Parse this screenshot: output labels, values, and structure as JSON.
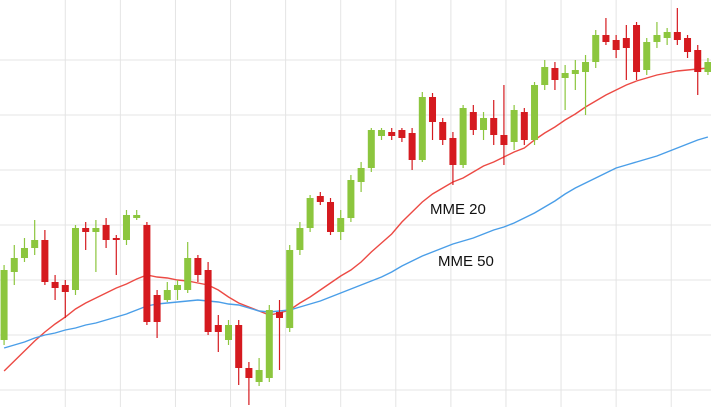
{
  "chart_data": {
    "type": "candlestick",
    "xlim": [
      -0.4,
      69.3
    ],
    "xticks": [
      6,
      11.4,
      16.8,
      22.2,
      27.6,
      33,
      38.4,
      43.8,
      49.2,
      54.6,
      60,
      65.4
    ],
    "ylim": [
      0,
      407
    ],
    "yticks": [
      17,
      72,
      127,
      182,
      237,
      292,
      347
    ],
    "grid": true,
    "up_color": "#8cc63e",
    "down_color": "#d51a1f",
    "open": [
      67,
      135,
      149,
      159,
      167,
      125,
      122,
      117,
      179,
      175,
      182,
      169,
      167,
      189,
      182,
      112,
      107,
      117,
      117,
      149,
      137,
      82,
      67,
      82,
      39,
      25,
      29,
      95,
      79,
      157,
      179,
      211,
      205,
      175,
      189,
      225,
      239,
      271,
      275,
      277,
      274,
      247,
      310,
      285,
      269,
      242,
      295,
      277,
      289,
      272,
      265,
      295,
      267,
      322,
      339,
      329,
      333,
      335,
      345,
      372,
      367,
      369,
      382,
      337,
      365,
      369,
      375,
      369,
      357,
      335
    ],
    "high": [
      142,
      162,
      169,
      187,
      177,
      132,
      127,
      182,
      185,
      187,
      189,
      172,
      197,
      197,
      185,
      117,
      125,
      127,
      165,
      152,
      145,
      92,
      87,
      87,
      45,
      49,
      102,
      107,
      162,
      185,
      212,
      215,
      209,
      197,
      232,
      245,
      279,
      279,
      279,
      279,
      279,
      315,
      314,
      289,
      275,
      302,
      302,
      295,
      307,
      322,
      302,
      299,
      325,
      347,
      345,
      342,
      347,
      352,
      377,
      389,
      372,
      382,
      385,
      369,
      385,
      379,
      399,
      372,
      362,
      349
    ],
    "low": [
      62,
      122,
      145,
      152,
      122,
      107,
      89,
      112,
      157,
      135,
      159,
      132,
      162,
      187,
      82,
      69,
      105,
      107,
      114,
      125,
      72,
      55,
      62,
      22,
      2,
      21,
      25,
      37,
      75,
      152,
      175,
      202,
      172,
      167,
      185,
      215,
      235,
      267,
      267,
      265,
      237,
      245,
      267,
      262,
      222,
      239,
      272,
      267,
      262,
      242,
      257,
      262,
      262,
      317,
      317,
      297,
      317,
      292,
      339,
      362,
      349,
      327,
      327,
      332,
      359,
      362,
      362,
      349,
      312,
      332
    ],
    "close": [
      137,
      149,
      159,
      167,
      125,
      119,
      115,
      179,
      175,
      179,
      167,
      167,
      192,
      192,
      85,
      85,
      117,
      122,
      149,
      132,
      75,
      75,
      82,
      39,
      29,
      37,
      97,
      89,
      157,
      179,
      209,
      205,
      175,
      189,
      227,
      239,
      277,
      277,
      271,
      269,
      247,
      310,
      285,
      267,
      242,
      299,
      277,
      289,
      272,
      262,
      297,
      267,
      322,
      340,
      327,
      334,
      337,
      345,
      372,
      365,
      357,
      359,
      335,
      365,
      372,
      375,
      367,
      355,
      335,
      345
    ],
    "series": [
      {
        "name": "MME 20",
        "color": "#ec4a44",
        "values": [
          36,
          46,
          56,
          66,
          75,
          83,
          90,
          98,
          104,
          109,
          114,
          119,
          123,
          128,
          132,
          130,
          129,
          127,
          126,
          124,
          122,
          117,
          110,
          104,
          100,
          96,
          92,
          94,
          97,
          104,
          110,
          117,
          124,
          131,
          137,
          145,
          155,
          164,
          173,
          185,
          195,
          205,
          213,
          219,
          225,
          229,
          235,
          241,
          245,
          250,
          255,
          259,
          267,
          274,
          280,
          287,
          293,
          300,
          306,
          312,
          317,
          322,
          326,
          329,
          332,
          334,
          336,
          337,
          338,
          339
        ]
      },
      {
        "name": "MME 50",
        "color": "#4a9ee8",
        "values": [
          59,
          62,
          65,
          69,
          72,
          74,
          77,
          79,
          82,
          84,
          87,
          90,
          93,
          97,
          101,
          103,
          104,
          105,
          106,
          107,
          106,
          105,
          103,
          102,
          99,
          96,
          95,
          96,
          97,
          100,
          103,
          106,
          110,
          114,
          118,
          122,
          126,
          130,
          135,
          141,
          146,
          151,
          155,
          159,
          163,
          166,
          169,
          173,
          177,
          180,
          184,
          189,
          194,
          200,
          206,
          213,
          219,
          224,
          229,
          234,
          239,
          242,
          245,
          248,
          251,
          255,
          259,
          263,
          267,
          270
        ]
      }
    ]
  }
}
